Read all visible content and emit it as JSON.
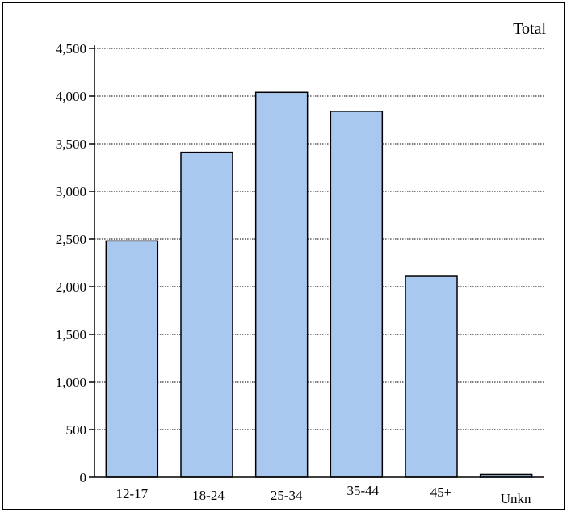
{
  "chart_data": {
    "type": "bar",
    "legend_label": "Total",
    "categories": [
      "12-17",
      "18-24",
      "25-34",
      "35-44",
      "45+",
      "Unkn"
    ],
    "values": [
      2480,
      3410,
      4040,
      3840,
      2110,
      30
    ],
    "ylim": [
      0,
      4500
    ],
    "yticks": [
      0,
      500,
      1000,
      1500,
      2000,
      2500,
      3000,
      3500,
      4000,
      4500
    ],
    "ytick_labels": [
      "0",
      "500",
      "1,000",
      "1,500",
      "2,000",
      "2,500",
      "3,000",
      "3,500",
      "4,000",
      "4,500"
    ],
    "grid": "horizontal dotted",
    "bar_color": "#a8c8ef",
    "bar_edge_color": "#000000"
  }
}
